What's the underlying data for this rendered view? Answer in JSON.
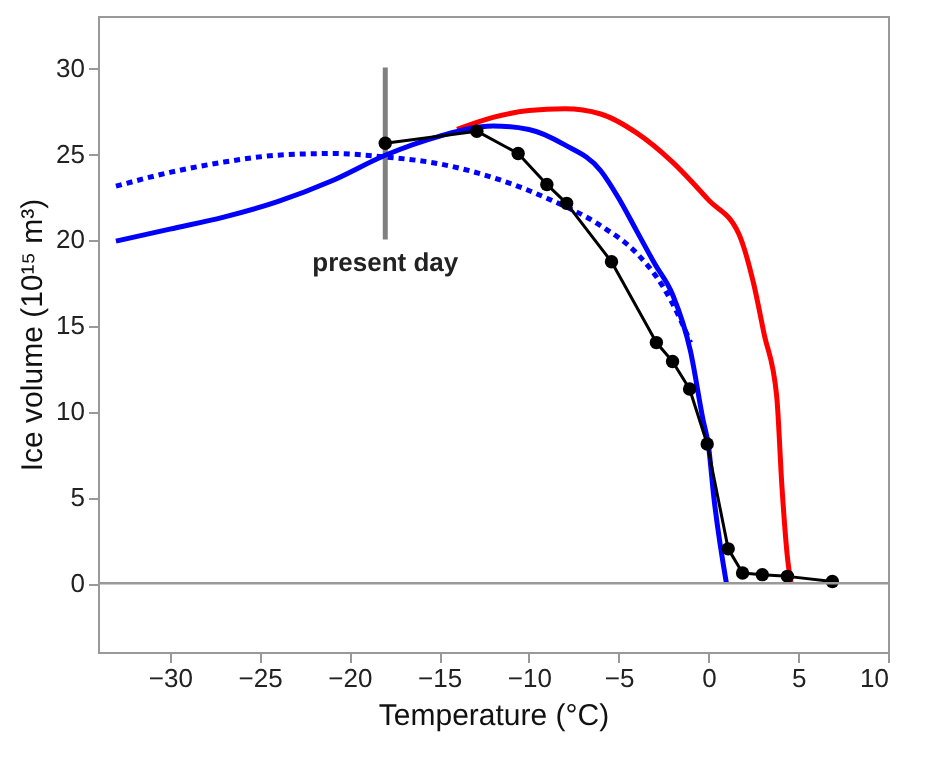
{
  "chart_data": {
    "type": "line",
    "xlabel": "Temperature (°C)",
    "ylabel": "Ice volume (10¹⁵ m³)",
    "xlim": [
      -34,
      10
    ],
    "xticks": [
      -30,
      -25,
      -20,
      -15,
      -10,
      -5,
      0,
      5,
      10
    ],
    "ylim": [
      -4,
      33
    ],
    "yticks": [
      0,
      5,
      10,
      15,
      20,
      25,
      30
    ],
    "grid": false,
    "ref_lines": [
      {
        "axis": "y",
        "value": 0,
        "color": "#999999"
      }
    ],
    "series": [
      {
        "name": "present day",
        "color": "#808080",
        "x": [
          -18,
          -18
        ],
        "values": [
          20,
          30
        ]
      },
      {
        "color": "#ff0000",
        "x": [
          -14,
          -12,
          -10,
          -8,
          -6,
          -4,
          -2,
          0,
          1.7,
          2.5,
          3.1,
          3.8,
          4.1,
          4.4,
          4.6
        ],
        "values": [
          26.4,
          27.1,
          27.5,
          27.6,
          27.3,
          26.2,
          24.5,
          22.3,
          20.3,
          17.5,
          14.5,
          10.9,
          5.5,
          1.5,
          0
        ]
      },
      {
        "color": "#0000ff",
        "line_style": "dotted",
        "x": [
          -33,
          -30,
          -27,
          -24,
          -21,
          -18,
          -15,
          -12,
          -9,
          -6,
          -4,
          -2.5,
          -1.5,
          -1
        ],
        "values": [
          23.1,
          23.9,
          24.5,
          24.9,
          25.0,
          24.8,
          24.4,
          23.6,
          22.4,
          20.8,
          19.2,
          17.2,
          15.2,
          14
        ]
      },
      {
        "color": "#0000ff",
        "x": [
          -33,
          -30,
          -27,
          -24,
          -21,
          -18,
          -15,
          -12,
          -10,
          -8,
          -6,
          -5,
          -4,
          -3,
          -2,
          -1,
          -0.3,
          0,
          0.3,
          1
        ],
        "values": [
          19.9,
          20.6,
          21.3,
          22.2,
          23.4,
          24.9,
          26.0,
          26.6,
          26.4,
          25.5,
          24.0,
          22.4,
          20.5,
          18.6,
          16.8,
          13.5,
          9.5,
          8,
          5,
          0
        ]
      },
      {
        "color": "#000000",
        "marker": "circle",
        "x": [
          -18,
          -12.9,
          -10.6,
          -9.0,
          -7.9,
          -5.4,
          -2.9,
          -2.0,
          -1.05,
          -0.07,
          1.1,
          1.9,
          3.0,
          4.4,
          6.9
        ],
        "values": [
          25.6,
          26.3,
          25.0,
          23.2,
          22.1,
          18.7,
          14.0,
          12.9,
          11.3,
          8.1,
          2.0,
          0.6,
          0.5,
          0.4,
          0.1
        ]
      }
    ]
  }
}
